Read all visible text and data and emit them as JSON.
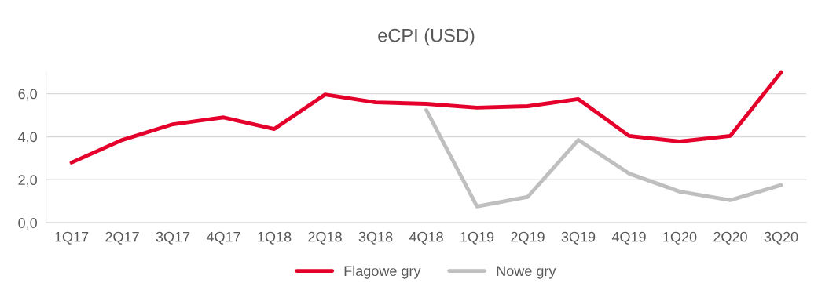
{
  "chart_data": {
    "type": "line",
    "title": "eCPI (USD)",
    "categories": [
      "1Q17",
      "2Q17",
      "3Q17",
      "4Q17",
      "1Q18",
      "2Q18",
      "3Q18",
      "4Q18",
      "1Q19",
      "2Q19",
      "3Q19",
      "4Q19",
      "1Q20",
      "2Q20",
      "3Q20"
    ],
    "series": [
      {
        "name": "Flagowe gry",
        "color": "#e4002b",
        "values": [
          2.8,
          3.85,
          4.58,
          4.9,
          4.36,
          5.96,
          5.6,
          5.53,
          5.35,
          5.42,
          5.75,
          4.04,
          3.78,
          4.04,
          7.0
        ]
      },
      {
        "name": "Nowe gry",
        "color": "#bfbfbf",
        "values": [
          null,
          null,
          null,
          null,
          null,
          null,
          null,
          5.24,
          0.76,
          1.2,
          3.85,
          2.29,
          1.45,
          1.05,
          1.75
        ]
      }
    ],
    "ylim": [
      0,
      7
    ],
    "yticks": [
      {
        "value": 0,
        "label": "0,0"
      },
      {
        "value": 2,
        "label": "2,0"
      },
      {
        "value": 4,
        "label": "4,0"
      },
      {
        "value": 6,
        "label": "6,0"
      }
    ],
    "grid": "y",
    "legend": "bottom",
    "marker": "none",
    "line_style": "solid"
  }
}
